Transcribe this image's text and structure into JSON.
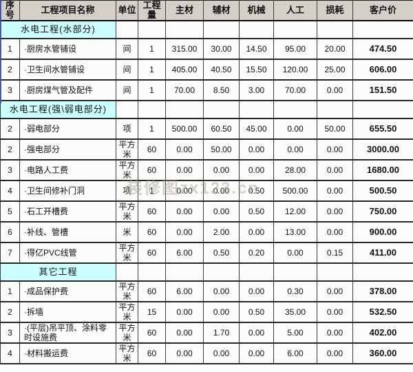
{
  "watermark_text": "装修图zx123.cn",
  "colors": {
    "header_bg": "#d4d0c8",
    "section_bg": "#ccffff",
    "border": "#272727",
    "accent_edge": "#3c55a5"
  },
  "table": {
    "columns": [
      "序号",
      "工程项目名称",
      "单位",
      "工程量",
      "主材",
      "辅材",
      "机械",
      "人工",
      "损耗",
      "客户价"
    ],
    "column_keys": [
      "no",
      "name",
      "unit",
      "qty",
      "main_material",
      "aux_material",
      "machinery",
      "labor",
      "loss",
      "customer_price"
    ],
    "sections": [
      {
        "title": "水电工程(水部分)",
        "rows": [
          [
            "1",
            "·厨房水管铺设",
            "间",
            "1",
            "315.00",
            "30.00",
            "14.50",
            "95.00",
            "20.00",
            "474.50"
          ],
          [
            "2",
            "·卫生间水管铺设",
            "间",
            "1",
            "405.00",
            "40.50",
            "15.50",
            "120.00",
            "25.00",
            "606.00"
          ],
          [
            "3",
            "·厨房煤气管及配件",
            "间",
            "1",
            "70.00",
            "8.50",
            "3.00",
            "70.00",
            "0.00",
            "151.50"
          ]
        ]
      },
      {
        "title": "水电工程(强\\弱电部分)",
        "rows": [
          [
            "2",
            "·弱电部分",
            "项",
            "1",
            "500.00",
            "60.50",
            "45.00",
            "0.00",
            "50.00",
            "655.50"
          ],
          [
            "2",
            "·强电部分",
            "平方米",
            "60",
            "0.00",
            "50.00",
            "0.00",
            "0.00",
            "0.00",
            "3000.00"
          ],
          [
            "3",
            "·电路人工费",
            "平方米",
            "60",
            "0.00",
            "0.00",
            "0.00",
            "28.00",
            "0.00",
            "1680.00"
          ],
          [
            "4",
            "·卫生间修补门洞",
            "项",
            "1",
            "0.00",
            "0.00",
            "0.50",
            "500.00",
            "0.00",
            "500.50"
          ],
          [
            "5",
            "·石工开槽费",
            "平方米",
            "60",
            "0.00",
            "0.00",
            "0.50",
            "12.00",
            "0.00",
            "750.00"
          ],
          [
            "6",
            "·补线、管槽",
            "米",
            "60",
            "0.00",
            "2.00",
            "0.00",
            "13.00",
            "0.00",
            "900.00"
          ],
          [
            "7",
            "·得亿PVC线管",
            "平方米",
            "60",
            "6.00",
            "0.50",
            "0.20",
            "0.00",
            "0.15",
            "411.00"
          ]
        ]
      },
      {
        "title": "其它工程",
        "rows": [
          [
            "1",
            "·成品保护费",
            "平方米",
            "60",
            "6.00",
            "0.00",
            "0.00",
            "0.30",
            "0.00",
            "378.00"
          ],
          [
            "2",
            "·拆墙",
            "平方米",
            "15",
            "0.00",
            "0.00",
            "0.50",
            "35.00",
            "0.00",
            "532.50"
          ],
          [
            "3",
            "·(平层)吊平顶、涂料零时设施费",
            "平方米",
            "60",
            "0.00",
            "1.70",
            "0.00",
            "5.00",
            "0.00",
            "402.00"
          ],
          [
            "4",
            "·材料搬运费",
            "平方米",
            "60",
            "0.00",
            "0.00",
            "0.00",
            "6.00",
            "0.00",
            "360.00"
          ]
        ]
      }
    ]
  }
}
